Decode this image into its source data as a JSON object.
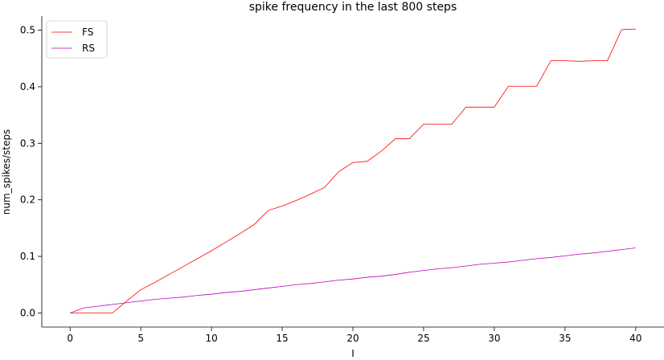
{
  "chart_data": {
    "type": "line",
    "title": "spike frequency in the last 800 steps",
    "xlabel": "I",
    "ylabel": "num_spikes/steps",
    "xlim": [
      -2,
      42
    ],
    "ylim": [
      -0.025,
      0.525
    ],
    "xticks": [
      0,
      5,
      10,
      15,
      20,
      25,
      30,
      35,
      40
    ],
    "yticks": [
      0.0,
      0.1,
      0.2,
      0.3,
      0.4,
      0.5
    ],
    "grid": false,
    "legend_position": "top-left",
    "x": [
      0,
      1,
      2,
      3,
      4,
      5,
      6,
      7,
      8,
      9,
      10,
      11,
      12,
      13,
      14,
      15,
      16,
      17,
      18,
      19,
      20,
      21,
      22,
      23,
      24,
      25,
      26,
      27,
      28,
      29,
      30,
      31,
      32,
      33,
      34,
      35,
      36,
      37,
      38,
      39,
      40
    ],
    "series": [
      {
        "name": "FS",
        "color": "#ff0000",
        "values": [
          0.0,
          0.0,
          0.0,
          0.0,
          0.021,
          0.041,
          0.054,
          0.068,
          0.082,
          0.096,
          0.11,
          0.125,
          0.14,
          0.156,
          0.181,
          0.189,
          0.199,
          0.21,
          0.222,
          0.25,
          0.266,
          0.268,
          0.286,
          0.308,
          0.308,
          0.334,
          0.334,
          0.334,
          0.364,
          0.364,
          0.364,
          0.401,
          0.401,
          0.401,
          0.446,
          0.446,
          0.445,
          0.446,
          0.446,
          0.501,
          0.502
        ]
      },
      {
        "name": "RS",
        "color": "#bf00bf",
        "values": [
          0.0,
          0.009,
          0.012,
          0.015,
          0.018,
          0.021,
          0.024,
          0.026,
          0.028,
          0.031,
          0.033,
          0.036,
          0.038,
          0.041,
          0.044,
          0.047,
          0.05,
          0.052,
          0.055,
          0.058,
          0.06,
          0.063,
          0.065,
          0.068,
          0.072,
          0.075,
          0.078,
          0.08,
          0.083,
          0.086,
          0.088,
          0.09,
          0.093,
          0.096,
          0.098,
          0.101,
          0.104,
          0.106,
          0.109,
          0.112,
          0.115
        ]
      }
    ]
  }
}
